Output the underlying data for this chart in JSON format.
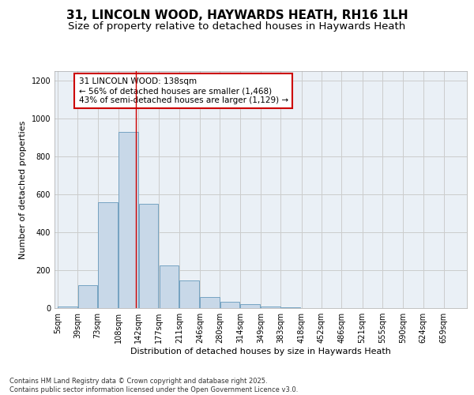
{
  "title_line1": "31, LINCOLN WOOD, HAYWARDS HEATH, RH16 1LH",
  "title_line2": "Size of property relative to detached houses in Haywards Heath",
  "xlabel": "Distribution of detached houses by size in Haywards Heath",
  "ylabel": "Number of detached properties",
  "bar_color": "#c8d8e8",
  "bar_edge_color": "#6699bb",
  "grid_color": "#cccccc",
  "annotation_box_color": "#cc0000",
  "annotation_text": "31 LINCOLN WOOD: 138sqm\n← 56% of detached houses are smaller (1,468)\n43% of semi-detached houses are larger (1,129) →",
  "property_line_x": 138,
  "footnote": "Contains HM Land Registry data © Crown copyright and database right 2025.\nContains public sector information licensed under the Open Government Licence v3.0.",
  "bin_edges": [
    5,
    39,
    73,
    108,
    142,
    177,
    211,
    246,
    280,
    314,
    349,
    383,
    418,
    452,
    486,
    521,
    555,
    590,
    624,
    659,
    693
  ],
  "bar_heights": [
    8,
    120,
    560,
    930,
    550,
    225,
    145,
    58,
    32,
    22,
    10,
    5,
    2,
    0,
    0,
    0,
    0,
    0,
    0,
    0
  ],
  "ylim": [
    0,
    1250
  ],
  "yticks": [
    0,
    200,
    400,
    600,
    800,
    1000,
    1200
  ],
  "background_color": "#eaf0f6",
  "title_fontsize": 11,
  "subtitle_fontsize": 9.5,
  "axis_label_fontsize": 8,
  "tick_fontsize": 7,
  "annotation_fontsize": 7.5,
  "footnote_fontsize": 6
}
